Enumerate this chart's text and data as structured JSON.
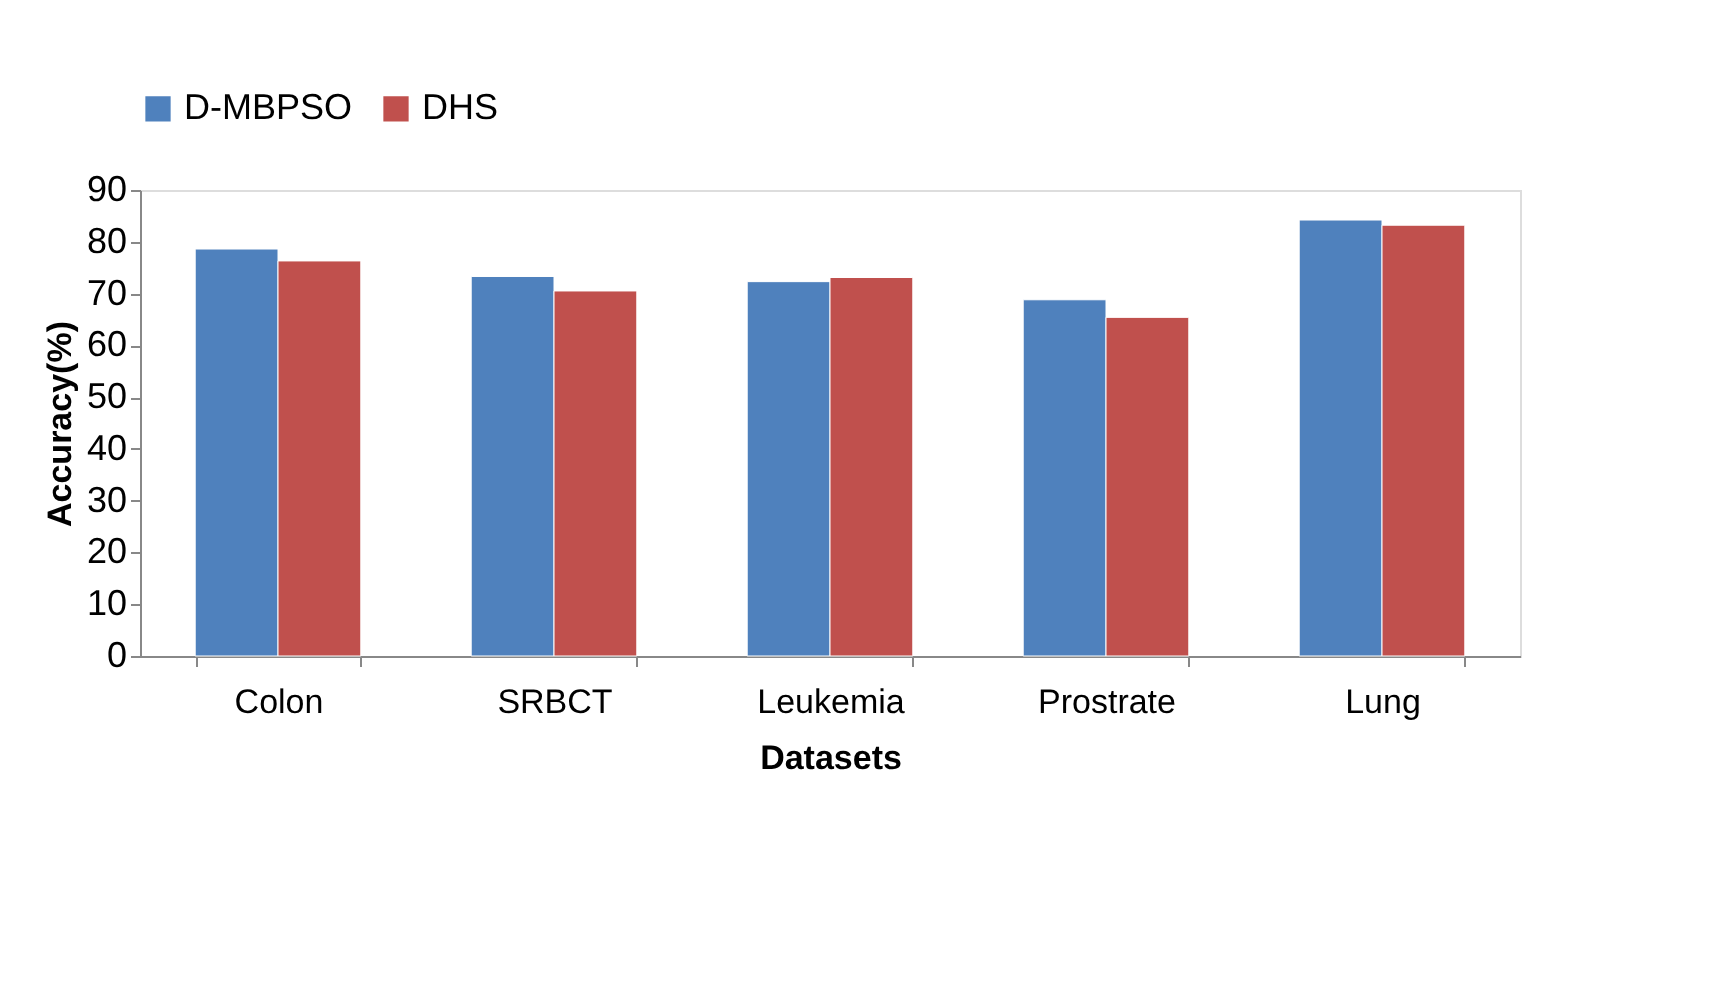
{
  "chart_data": {
    "type": "bar",
    "xlabel": "Datasets",
    "ylabel": "Accuracy(%)",
    "categories": [
      "Colon",
      "SRBCT",
      "Leukemia",
      "Prostrate",
      "Lung"
    ],
    "series": [
      {
        "name": "D-MBPSO",
        "color": "#4f81bd",
        "values": [
          78.6,
          73.3,
          72.3,
          68.8,
          84.2
        ]
      },
      {
        "name": "DHS",
        "color": "#c0504d",
        "values": [
          76.3,
          70.5,
          73.1,
          65.4,
          83.2
        ]
      }
    ],
    "ylim": [
      0,
      90
    ],
    "yticks": [
      0,
      10,
      20,
      30,
      40,
      50,
      60,
      70,
      80,
      90
    ],
    "grid": false,
    "legend": "top"
  }
}
